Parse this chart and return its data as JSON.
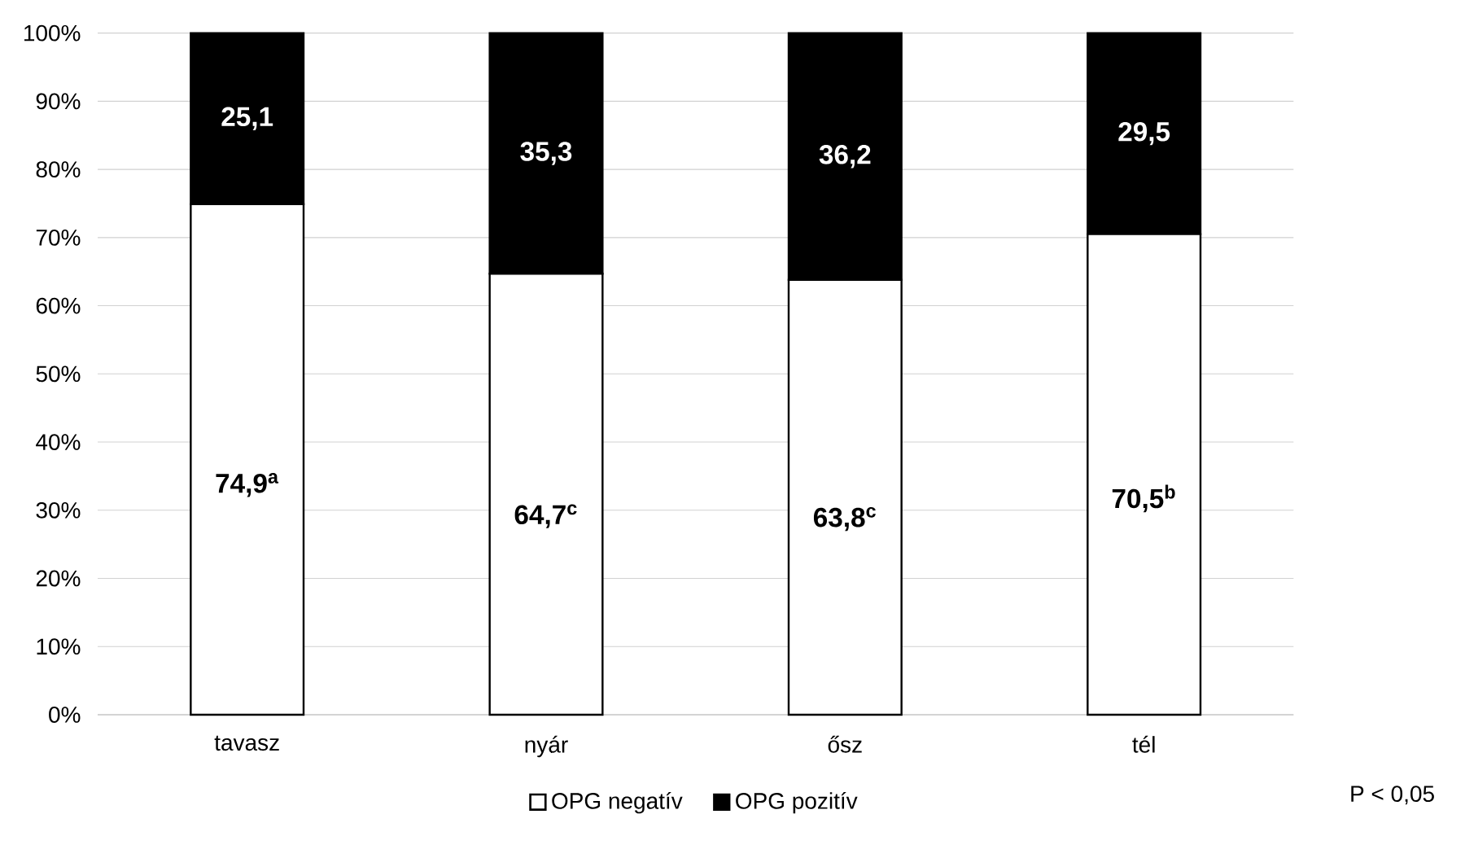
{
  "chart_data": {
    "type": "bar",
    "stacked": true,
    "categories": [
      "tavasz",
      "nyár",
      "ősz",
      "tél"
    ],
    "series": [
      {
        "name": "OPG negatív",
        "color": "#ffffff",
        "values": [
          74.9,
          64.7,
          63.8,
          70.5
        ],
        "value_labels": [
          "74,9$^{a}$",
          "64,7$^{c}$",
          "63,8$^{c}$",
          "70,5$^{b}$"
        ]
      },
      {
        "name": "OPG pozitív",
        "color": "#000000",
        "values": [
          25.1,
          35.3,
          36.2,
          29.5
        ],
        "value_labels": [
          "25,1",
          "35,3",
          "36,2",
          "29,5"
        ]
      }
    ],
    "ylim": [
      0,
      100
    ],
    "yticks": [
      {
        "value": 0,
        "label": "0%"
      },
      {
        "value": 10,
        "label": "10%"
      },
      {
        "value": 20,
        "label": "20%"
      },
      {
        "value": 30,
        "label": "30%"
      },
      {
        "value": 40,
        "label": "40%"
      },
      {
        "value": 50,
        "label": "50%"
      },
      {
        "value": 60,
        "label": "60%"
      },
      {
        "value": 70,
        "label": "70%"
      },
      {
        "value": 80,
        "label": "80%"
      },
      {
        "value": 90,
        "label": "90%"
      },
      {
        "value": 100,
        "label": "100%"
      }
    ],
    "grid": "y",
    "legend": "bottom",
    "annotations": [
      "P < 0,05"
    ]
  }
}
